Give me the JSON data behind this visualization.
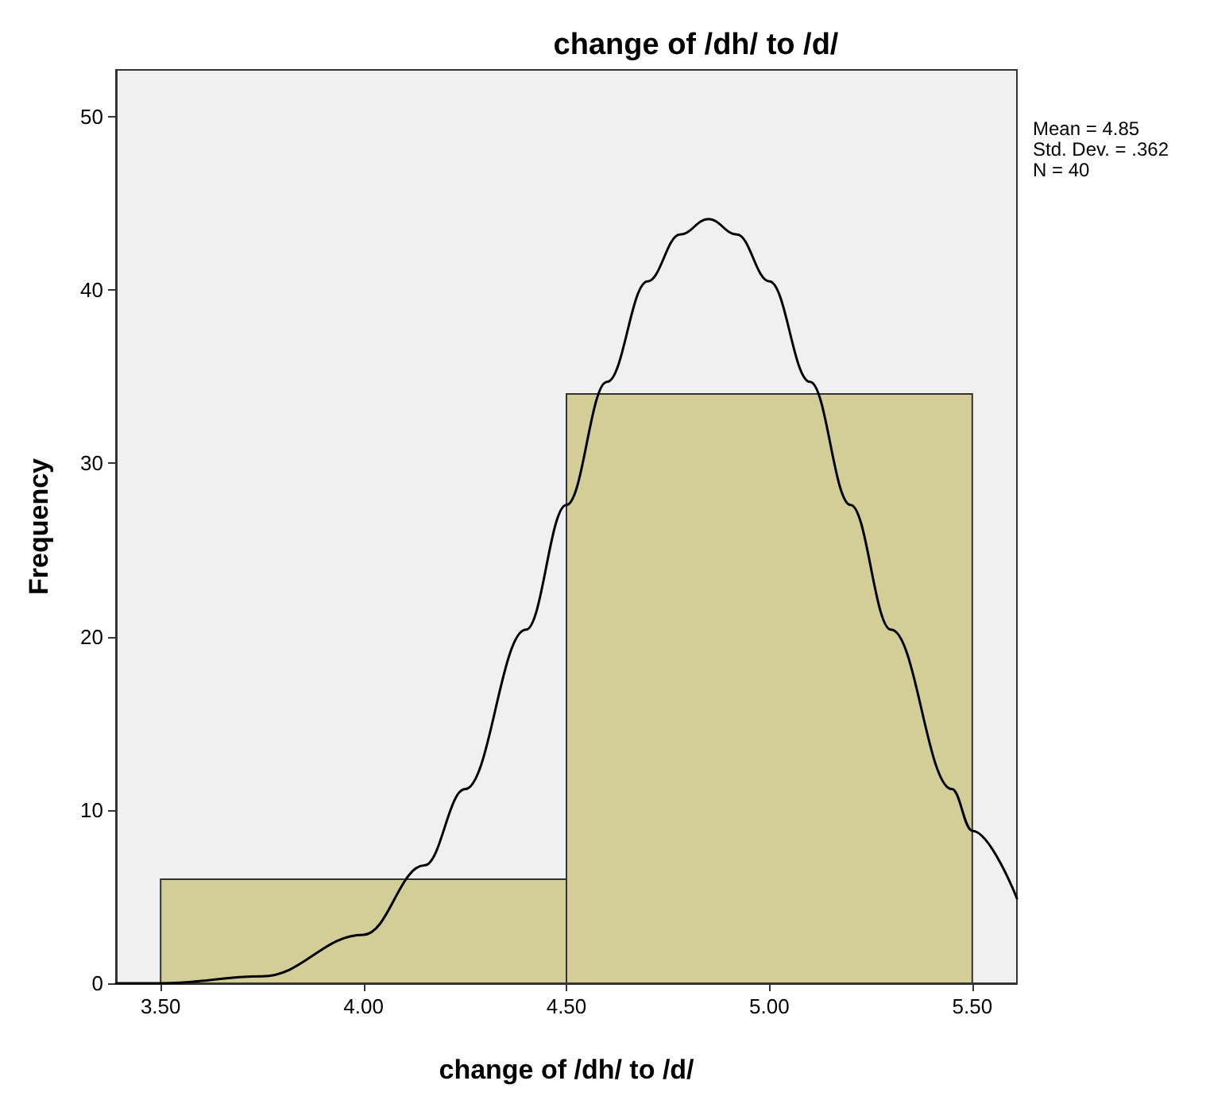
{
  "chart_data": {
    "type": "histogram",
    "title": "change of /dh/ to /d/",
    "xlabel": "change of /dh/ to /d/",
    "ylabel": "Frequency",
    "bins": [
      3.5,
      4.5,
      5.5
    ],
    "values": [
      6,
      34
    ],
    "color": "#d3ce97",
    "series": [
      {
        "type": "line",
        "color": "#000000",
        "x": [
          3.39,
          3.5,
          3.75,
          4.0,
          4.15,
          4.25,
          4.4,
          4.5,
          4.6,
          4.7,
          4.78,
          4.85,
          4.92,
          5.0,
          5.1,
          5.2,
          5.3,
          5.45,
          5.5,
          5.61
        ],
        "values": [
          0,
          0,
          0.4,
          2.8,
          6.8,
          11.2,
          20.4,
          27.6,
          34.7,
          40.5,
          43.2,
          44.1,
          43.2,
          40.5,
          34.7,
          27.6,
          20.4,
          11.2,
          8.8,
          4.9
        ]
      }
    ],
    "xlim": [
      3.39,
      5.61
    ],
    "ylim": [
      0,
      52.7
    ],
    "xticks": [
      {
        "value": 3.5,
        "label": "3.50"
      },
      {
        "value": 4.0,
        "label": "4.00"
      },
      {
        "value": 4.5,
        "label": "4.50"
      },
      {
        "value": 5.0,
        "label": "5.00"
      },
      {
        "value": 5.5,
        "label": "5.50"
      }
    ],
    "yticks": [
      0,
      10,
      20,
      30,
      40,
      50
    ],
    "annotations": [
      "Mean = 4.85",
      "Std. Dev. = .362",
      "N = 40"
    ],
    "grid": false,
    "marker": "none",
    "line_style": "solid"
  }
}
